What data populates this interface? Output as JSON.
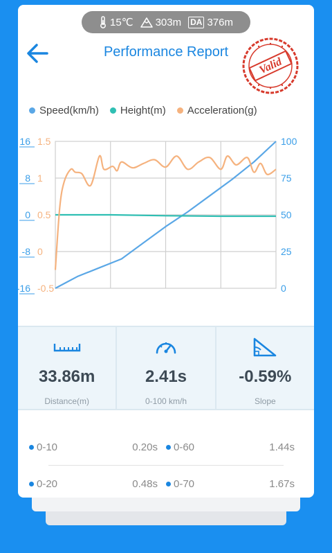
{
  "header": {
    "temperature": "15℃",
    "altitude": "303m",
    "da_badge": "DA",
    "density_altitude": "376m",
    "title": "Performance Report",
    "stamp_text": "Valid"
  },
  "legend": [
    {
      "label": "Speed(km/h)",
      "color": "#5aa7e6"
    },
    {
      "label": "Height(m)",
      "color": "#2fbfb3"
    },
    {
      "label": "Acceleration(g)",
      "color": "#f5b27e"
    }
  ],
  "chart_data": {
    "type": "line",
    "axes": {
      "left_height_ticks": [
        "16",
        "8",
        "0",
        "-8",
        "-16"
      ],
      "left_height_range": [
        -16,
        16
      ],
      "left_accel_ticks": [
        "1.5",
        "1",
        "0.5",
        "0",
        "-0.5"
      ],
      "left_accel_range": [
        -0.5,
        1.5
      ],
      "right_speed_ticks": [
        "100",
        "75",
        "50",
        "25",
        "0"
      ],
      "right_speed_range": [
        0,
        100
      ]
    },
    "grid": true,
    "series": [
      {
        "name": "Speed(km/h)",
        "axis": "right",
        "x": [
          0,
          0.05,
          0.1,
          0.2,
          0.3,
          0.4,
          0.5,
          0.6,
          0.7,
          0.8,
          0.9,
          1.0
        ],
        "values": [
          0,
          4,
          8,
          14,
          20,
          31,
          42,
          52,
          63,
          74,
          86,
          100
        ]
      },
      {
        "name": "Height(m)",
        "axis": "left_height",
        "x": [
          0,
          0.25,
          0.5,
          0.75,
          1.0
        ],
        "values": [
          0,
          0,
          -0.2,
          -0.3,
          -0.3
        ]
      },
      {
        "name": "Acceleration(g)",
        "axis": "left_accel",
        "x": [
          0,
          0.02,
          0.04,
          0.07,
          0.09,
          0.12,
          0.16,
          0.2,
          0.22,
          0.26,
          0.28,
          0.3,
          0.35,
          0.4,
          0.45,
          0.5,
          0.55,
          0.6,
          0.65,
          0.7,
          0.75,
          0.78,
          0.82,
          0.87,
          0.9,
          0.93,
          0.96,
          1.0
        ],
        "values": [
          -0.25,
          0.6,
          0.95,
          1.12,
          1.08,
          1.06,
          0.9,
          1.3,
          1.12,
          1.16,
          1.1,
          1.22,
          1.14,
          1.2,
          1.25,
          1.15,
          1.3,
          1.12,
          1.22,
          1.28,
          1.12,
          1.3,
          1.18,
          1.28,
          1.08,
          1.2,
          1.05,
          1.12
        ]
      }
    ]
  },
  "stats": [
    {
      "icon": "ruler-icon",
      "value": "33.86m",
      "label": "Distance(m)"
    },
    {
      "icon": "speedometer-icon",
      "value": "2.41s",
      "label": "0-100 km/h"
    },
    {
      "icon": "slope-icon",
      "value": "-0.59%",
      "label": "Slope"
    }
  ],
  "splits": [
    {
      "left": {
        "range": "0-10",
        "time": "0.20s"
      },
      "right": {
        "range": "0-60",
        "time": "1.44s"
      }
    },
    {
      "left": {
        "range": "0-20",
        "time": "0.48s"
      },
      "right": {
        "range": "0-70",
        "time": "1.67s"
      }
    }
  ]
}
